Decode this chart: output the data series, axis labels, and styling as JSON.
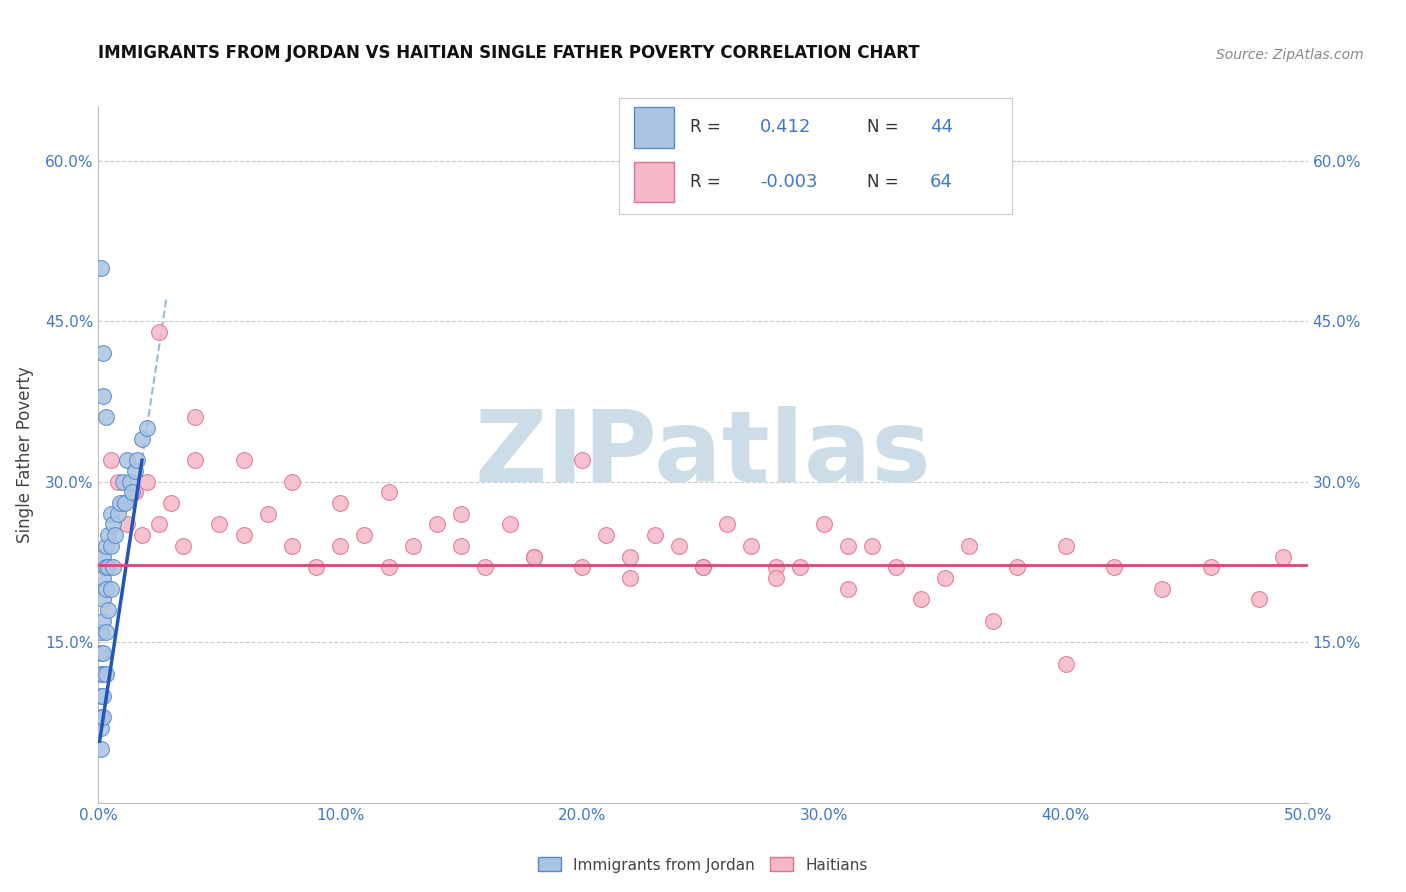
{
  "title": "IMMIGRANTS FROM JORDAN VS HAITIAN SINGLE FATHER POVERTY CORRELATION CHART",
  "source_text": "Source: ZipAtlas.com",
  "ylabel": "Single Father Poverty",
  "xlim": [
    0.0,
    0.5
  ],
  "ylim": [
    0.0,
    0.65
  ],
  "xticks": [
    0.0,
    0.1,
    0.2,
    0.3,
    0.4,
    0.5
  ],
  "xticklabels": [
    "0.0%",
    "10.0%",
    "20.0%",
    "30.0%",
    "40.0%",
    "50.0%"
  ],
  "yticks_left": [
    0.15,
    0.3,
    0.45,
    0.6
  ],
  "yticks_right": [
    0.15,
    0.3,
    0.45,
    0.6
  ],
  "yticklabels": [
    "15.0%",
    "30.0%",
    "45.0%",
    "60.0%"
  ],
  "legend_R1": "0.412",
  "legend_N1": "44",
  "legend_R2": "-0.003",
  "legend_N2": "64",
  "blue_color": "#aac4e2",
  "blue_edge": "#5588cc",
  "pink_color": "#f5b8c8",
  "pink_edge": "#e07090",
  "trend_blue_color": "#2255bb",
  "trend_pink_color": "#dd4477",
  "dashed_color": "#99bbdd",
  "watermark": "ZIPatlas",
  "watermark_color": "#ccdde8",
  "background_color": "#ffffff",
  "grid_color": "#cccccc",
  "title_color": "#111111",
  "source_color": "#888888",
  "axis_label_color": "#444444",
  "tick_label_color": "#4477cc",
  "legend_border_color": "#cccccc",
  "blue_dots_x": [
    0.001,
    0.001,
    0.001,
    0.001,
    0.001,
    0.001,
    0.001,
    0.002,
    0.002,
    0.002,
    0.002,
    0.002,
    0.002,
    0.002,
    0.002,
    0.003,
    0.003,
    0.003,
    0.003,
    0.003,
    0.004,
    0.004,
    0.004,
    0.005,
    0.005,
    0.005,
    0.006,
    0.006,
    0.007,
    0.008,
    0.009,
    0.01,
    0.011,
    0.012,
    0.013,
    0.014,
    0.015,
    0.016,
    0.018,
    0.02,
    0.001,
    0.002,
    0.002,
    0.003
  ],
  "blue_dots_y": [
    0.05,
    0.07,
    0.08,
    0.1,
    0.12,
    0.14,
    0.16,
    0.08,
    0.1,
    0.12,
    0.14,
    0.17,
    0.19,
    0.21,
    0.23,
    0.12,
    0.16,
    0.2,
    0.22,
    0.24,
    0.18,
    0.22,
    0.25,
    0.2,
    0.24,
    0.27,
    0.22,
    0.26,
    0.25,
    0.27,
    0.28,
    0.3,
    0.28,
    0.32,
    0.3,
    0.29,
    0.31,
    0.32,
    0.34,
    0.35,
    0.5,
    0.42,
    0.38,
    0.36
  ],
  "pink_dots_x": [
    0.005,
    0.008,
    0.01,
    0.012,
    0.015,
    0.018,
    0.02,
    0.025,
    0.03,
    0.035,
    0.04,
    0.05,
    0.06,
    0.07,
    0.08,
    0.09,
    0.1,
    0.11,
    0.12,
    0.13,
    0.14,
    0.15,
    0.16,
    0.17,
    0.18,
    0.2,
    0.21,
    0.22,
    0.23,
    0.24,
    0.25,
    0.26,
    0.27,
    0.28,
    0.29,
    0.3,
    0.31,
    0.32,
    0.33,
    0.35,
    0.36,
    0.38,
    0.4,
    0.42,
    0.44,
    0.46,
    0.48,
    0.49,
    0.025,
    0.04,
    0.06,
    0.08,
    0.1,
    0.12,
    0.15,
    0.18,
    0.2,
    0.22,
    0.25,
    0.28,
    0.31,
    0.34,
    0.37,
    0.4
  ],
  "pink_dots_y": [
    0.32,
    0.3,
    0.28,
    0.26,
    0.29,
    0.25,
    0.3,
    0.26,
    0.28,
    0.24,
    0.32,
    0.26,
    0.25,
    0.27,
    0.24,
    0.22,
    0.24,
    0.25,
    0.22,
    0.24,
    0.26,
    0.24,
    0.22,
    0.26,
    0.23,
    0.22,
    0.25,
    0.21,
    0.25,
    0.24,
    0.22,
    0.26,
    0.24,
    0.22,
    0.22,
    0.26,
    0.24,
    0.24,
    0.22,
    0.21,
    0.24,
    0.22,
    0.24,
    0.22,
    0.2,
    0.22,
    0.19,
    0.23,
    0.44,
    0.36,
    0.32,
    0.3,
    0.28,
    0.29,
    0.27,
    0.23,
    0.32,
    0.23,
    0.22,
    0.21,
    0.2,
    0.19,
    0.17,
    0.13
  ]
}
